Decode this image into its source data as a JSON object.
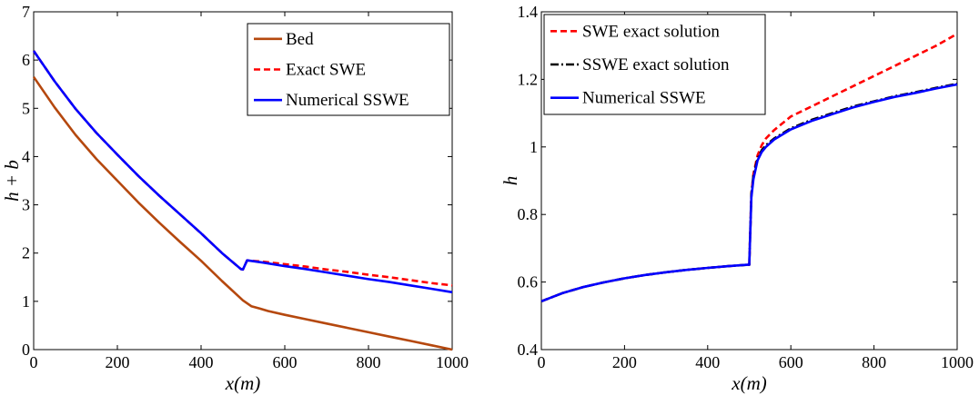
{
  "chart_data": [
    {
      "type": "line",
      "xlabel": "x(m)",
      "ylabel": "h + b",
      "xlim": [
        0,
        1000
      ],
      "ylim": [
        0,
        7
      ],
      "xticks": [
        0,
        200,
        400,
        600,
        800,
        1000
      ],
      "yticks": [
        0,
        1,
        2,
        3,
        4,
        5,
        6,
        7
      ],
      "grid": false,
      "legend_position": "top-right",
      "series": [
        {
          "name": "Bed",
          "color": "#b5480e",
          "style": "solid",
          "x": [
            0,
            50,
            100,
            150,
            200,
            250,
            300,
            350,
            400,
            450,
            500,
            520,
            540,
            560,
            600,
            650,
            700,
            750,
            800,
            850,
            900,
            950,
            1000
          ],
          "y": [
            5.65,
            5.02,
            4.45,
            3.95,
            3.5,
            3.05,
            2.63,
            2.23,
            1.84,
            1.42,
            1.02,
            0.9,
            0.85,
            0.8,
            0.72,
            0.63,
            0.54,
            0.45,
            0.36,
            0.27,
            0.18,
            0.09,
            0.0
          ]
        },
        {
          "name": "Exact SWE",
          "color": "#ff0000",
          "style": "dashed",
          "x": [
            0,
            50,
            100,
            150,
            200,
            250,
            300,
            350,
            400,
            450,
            495,
            500,
            510,
            550,
            600,
            650,
            700,
            750,
            800,
            850,
            900,
            950,
            1000
          ],
          "y": [
            6.19,
            5.56,
            4.99,
            4.49,
            4.04,
            3.6,
            3.19,
            2.8,
            2.41,
            2.0,
            1.67,
            1.66,
            1.85,
            1.82,
            1.77,
            1.72,
            1.66,
            1.61,
            1.55,
            1.5,
            1.44,
            1.38,
            1.33
          ]
        },
        {
          "name": "Numerical SSWE",
          "color": "#0000ff",
          "style": "solid",
          "x": [
            0,
            50,
            100,
            150,
            200,
            250,
            300,
            350,
            400,
            450,
            495,
            500,
            510,
            550,
            600,
            650,
            700,
            750,
            800,
            850,
            900,
            950,
            1000
          ],
          "y": [
            6.19,
            5.56,
            4.99,
            4.49,
            4.04,
            3.6,
            3.19,
            2.8,
            2.41,
            2.0,
            1.67,
            1.66,
            1.85,
            1.8,
            1.73,
            1.67,
            1.6,
            1.53,
            1.46,
            1.4,
            1.33,
            1.26,
            1.19
          ]
        }
      ]
    },
    {
      "type": "line",
      "xlabel": "x(m)",
      "ylabel": "h",
      "xlim": [
        0,
        1000
      ],
      "ylim": [
        0.4,
        1.4
      ],
      "xticks": [
        0,
        200,
        400,
        600,
        800,
        1000
      ],
      "yticks": [
        0.4,
        0.6,
        0.8,
        1,
        1.2,
        1.4
      ],
      "grid": false,
      "legend_position": "top-left",
      "series": [
        {
          "name": "SWE exact solution",
          "color": "#ff0000",
          "style": "dashed",
          "x": [
            0,
            50,
            100,
            150,
            200,
            250,
            300,
            350,
            400,
            450,
            495,
            500,
            505,
            510,
            520,
            530,
            540,
            560,
            600,
            650,
            700,
            750,
            800,
            850,
            900,
            950,
            1000
          ],
          "y": [
            0.543,
            0.567,
            0.585,
            0.599,
            0.611,
            0.621,
            0.629,
            0.636,
            0.642,
            0.647,
            0.651,
            0.651,
            0.86,
            0.92,
            0.975,
            1.005,
            1.025,
            1.05,
            1.09,
            1.12,
            1.15,
            1.18,
            1.21,
            1.24,
            1.27,
            1.3,
            1.335
          ]
        },
        {
          "name": "SSWE exact solution",
          "color": "#000000",
          "style": "dashdot",
          "x": [
            0,
            50,
            100,
            150,
            200,
            250,
            300,
            350,
            400,
            450,
            495,
            500,
            505,
            510,
            520,
            530,
            540,
            560,
            600,
            650,
            700,
            750,
            800,
            850,
            900,
            950,
            1000
          ],
          "y": [
            0.543,
            0.567,
            0.585,
            0.599,
            0.611,
            0.621,
            0.629,
            0.636,
            0.642,
            0.647,
            0.651,
            0.651,
            0.86,
            0.915,
            0.965,
            0.99,
            1.005,
            1.025,
            1.055,
            1.08,
            1.1,
            1.12,
            1.135,
            1.15,
            1.162,
            1.175,
            1.187
          ]
        },
        {
          "name": "Numerical SSWE",
          "color": "#0000ff",
          "style": "solid",
          "x": [
            0,
            50,
            100,
            150,
            200,
            250,
            300,
            350,
            400,
            450,
            495,
            500,
            505,
            510,
            520,
            530,
            540,
            560,
            600,
            650,
            700,
            750,
            800,
            850,
            900,
            950,
            1000
          ],
          "y": [
            0.543,
            0.567,
            0.585,
            0.599,
            0.611,
            0.621,
            0.629,
            0.636,
            0.642,
            0.647,
            0.651,
            0.651,
            0.85,
            0.905,
            0.96,
            0.985,
            1.0,
            1.022,
            1.052,
            1.077,
            1.097,
            1.117,
            1.133,
            1.148,
            1.16,
            1.173,
            1.185
          ]
        }
      ]
    }
  ]
}
